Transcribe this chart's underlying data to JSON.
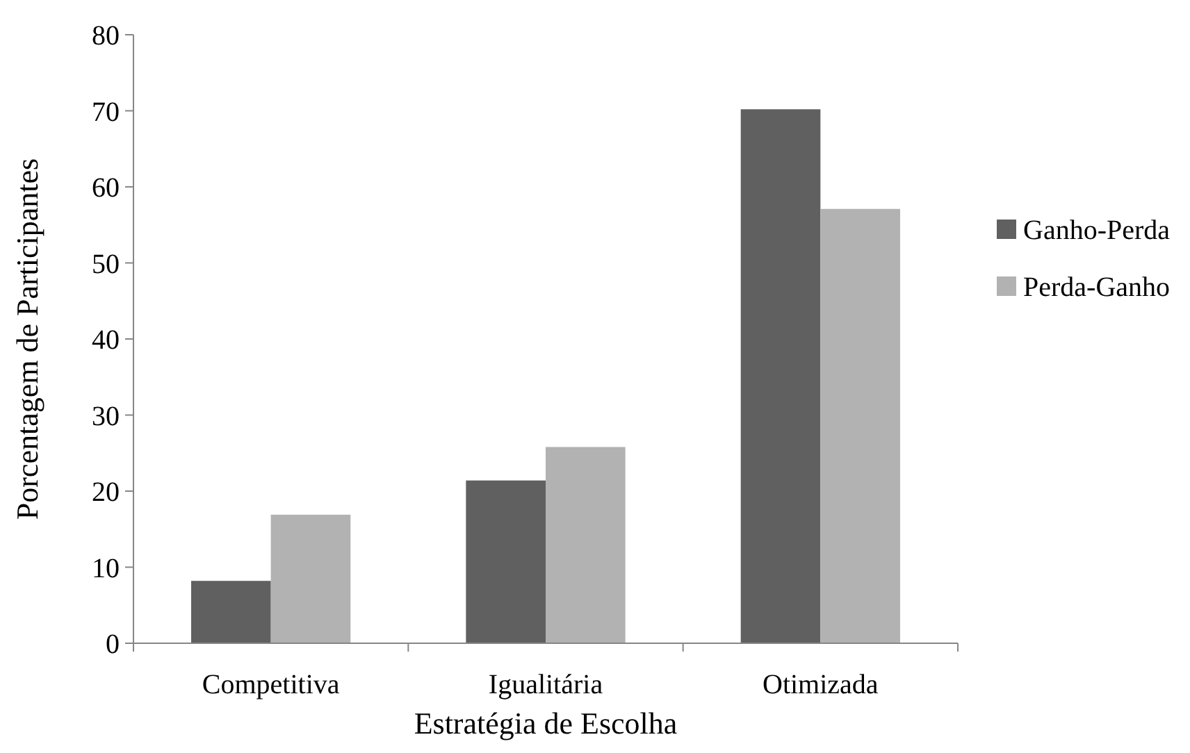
{
  "chart_data": {
    "type": "bar",
    "xlabel": "Estratégia de Escolha",
    "ylabel": "Porcentagem de Participantes",
    "categories": [
      "Competitiva",
      "Igualitária",
      "Otimizada"
    ],
    "series": [
      {
        "name": "Ganho-Perda",
        "color": "#606060",
        "values": [
          8.2,
          21.4,
          70.2
        ]
      },
      {
        "name": "Perda-Ganho",
        "color": "#b2b2b2",
        "values": [
          16.9,
          25.8,
          57.1
        ]
      }
    ],
    "ylim": [
      0,
      80
    ],
    "yticks": [
      0,
      10,
      20,
      30,
      40,
      50,
      60,
      70,
      80
    ],
    "grid": false,
    "legend": "right"
  }
}
